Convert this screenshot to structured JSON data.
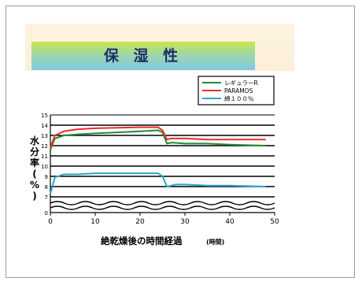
{
  "title": "保 湿 性",
  "chart_data": {
    "type": "line",
    "xlabel": "絶乾燥後の時間経過",
    "xunit": "(時間)",
    "ylabel": [
      "水",
      "分",
      "率",
      "(",
      "%",
      ")"
    ],
    "xlim": [
      0,
      50
    ],
    "ylim": [
      7,
      15
    ],
    "x_ticks": [
      0,
      10,
      20,
      30,
      40,
      50
    ],
    "y_ticks": [
      7,
      8,
      9,
      10,
      11,
      12,
      13,
      14,
      15
    ],
    "y_origin_label": "0",
    "grid": true,
    "legend_position": "top-right",
    "series": [
      {
        "name": "レギュラーR",
        "color": "#1f8a3a",
        "x": [
          0,
          1,
          3,
          6,
          10,
          15,
          20,
          24,
          25,
          26,
          27,
          30,
          35,
          40,
          48
        ],
        "y": [
          11.6,
          12.7,
          13.0,
          13.1,
          13.2,
          13.3,
          13.4,
          13.5,
          13.3,
          12.2,
          12.3,
          12.2,
          12.2,
          12.1,
          12.0
        ]
      },
      {
        "name": "PARAMOS",
        "color": "#e8302a",
        "x": [
          0,
          1,
          3,
          6,
          10,
          15,
          20,
          24,
          25,
          26,
          27,
          30,
          35,
          40,
          48
        ],
        "y": [
          11.8,
          13.0,
          13.4,
          13.6,
          13.7,
          13.75,
          13.8,
          13.8,
          13.5,
          12.6,
          12.7,
          12.7,
          12.6,
          12.6,
          12.6
        ]
      },
      {
        "name": "綿１００％",
        "color": "#27a8c8",
        "x": [
          0,
          1,
          3,
          6,
          10,
          15,
          20,
          24,
          25,
          26,
          28,
          30,
          35,
          40,
          48
        ],
        "y": [
          7.3,
          8.9,
          9.2,
          9.2,
          9.3,
          9.3,
          9.3,
          9.3,
          9.0,
          8.0,
          8.2,
          8.2,
          8.1,
          8.1,
          8.0
        ]
      }
    ]
  }
}
